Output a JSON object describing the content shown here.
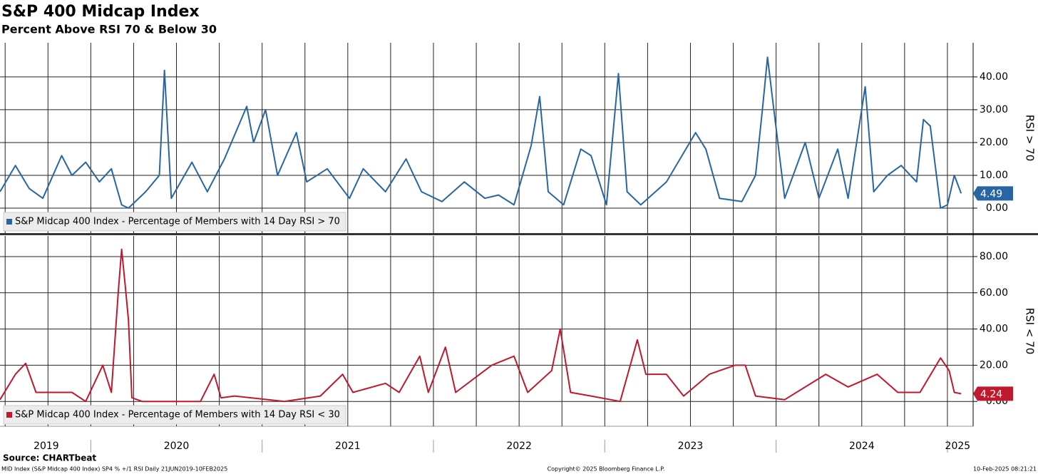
{
  "header": {
    "title": "S&P 400 Midcap Index",
    "subtitle": "Percent Above RSI 70 & Below 30"
  },
  "footer": {
    "source": "Source: CHARTbeat",
    "left": "MID Index (S&P Midcap 400 Index) SP4 % +/1 RSI  Daily 21JUN2019-10FEB2025",
    "center": "Copyright© 2025 Bloomberg Finance L.P.",
    "right": "10-Feb-2025 08:21:21"
  },
  "chart_data": [
    {
      "type": "line",
      "y_label": "RSI > 70",
      "grid": true,
      "xlim": [
        2019.47,
        2025.15
      ],
      "ylim": [
        -7.6,
        50.4
      ],
      "yticks": [
        {
          "value": 0,
          "label": "0.00"
        },
        {
          "value": 10,
          "label": "10.00"
        },
        {
          "value": 20,
          "label": "20.00"
        },
        {
          "value": 30,
          "label": "30.00"
        },
        {
          "value": 40,
          "label": "40.00"
        }
      ],
      "xgrid": [
        2019.5,
        2019.75,
        2020,
        2020.25,
        2020.5,
        2020.75,
        2021,
        2021.25,
        2021.5,
        2021.75,
        2022,
        2022.25,
        2022.5,
        2022.75,
        2023,
        2023.25,
        2023.5,
        2023.75,
        2024,
        2024.25,
        2024.5,
        2024.75,
        2025
      ],
      "x": [
        2019.47,
        2019.56,
        2019.64,
        2019.72,
        2019.83,
        2019.89,
        2019.97,
        2020.05,
        2020.12,
        2020.18,
        2020.22,
        2020.32,
        2020.4,
        2020.43,
        2020.47,
        2020.59,
        2020.68,
        2020.78,
        2020.91,
        2020.95,
        2021.02,
        2021.09,
        2021.2,
        2021.26,
        2021.38,
        2021.51,
        2021.59,
        2021.72,
        2021.84,
        2021.93,
        2022.05,
        2022.18,
        2022.3,
        2022.38,
        2022.47,
        2022.57,
        2022.62,
        2022.67,
        2022.76,
        2022.86,
        2022.92,
        2023.01,
        2023.08,
        2023.13,
        2023.21,
        2023.36,
        2023.53,
        2023.59,
        2023.67,
        2023.8,
        2023.88,
        2023.92,
        2023.95,
        2023.98,
        2024.05,
        2024.17,
        2024.25,
        2024.36,
        2024.42,
        2024.52,
        2024.57,
        2024.65,
        2024.73,
        2024.82,
        2024.86,
        2024.9,
        2024.96,
        2025,
        2025.04,
        2025.08
      ],
      "series": [
        {
          "name": "S&P Midcap 400 Index - Percentage of Members with 14 Day RSI > 70",
          "color": "#2866a3",
          "values": [
            5,
            13,
            6,
            3,
            16,
            10,
            14,
            8,
            12,
            1,
            0,
            5,
            10,
            42,
            3,
            14,
            5,
            15,
            31,
            20,
            30,
            10,
            23,
            8,
            12,
            3,
            12,
            5,
            15,
            5,
            2,
            8,
            3,
            4,
            1,
            19,
            34,
            5,
            1,
            18,
            16,
            1,
            41,
            5,
            1,
            8,
            23,
            18,
            3,
            2,
            10,
            30,
            46,
            33,
            3,
            20,
            3,
            18,
            3,
            37,
            5,
            10,
            13,
            8,
            27,
            25,
            0,
            1,
            10,
            4.49
          ],
          "end_label": "4.49"
        }
      ]
    },
    {
      "type": "line",
      "y_label": "RSI < 70",
      "grid": true,
      "xlim": [
        2019.47,
        2025.15
      ],
      "ylim": [
        -13.7,
        91.4
      ],
      "yticks": [
        {
          "value": 0,
          "label": "0.00"
        },
        {
          "value": 20,
          "label": "20.00"
        },
        {
          "value": 40,
          "label": "40.00"
        },
        {
          "value": 60,
          "label": "60.00"
        },
        {
          "value": 80,
          "label": "80.00"
        }
      ],
      "xgrid": [
        2019.5,
        2019.75,
        2020,
        2020.25,
        2020.5,
        2020.75,
        2021,
        2021.25,
        2021.5,
        2021.75,
        2022,
        2022.25,
        2022.5,
        2022.75,
        2023,
        2023.25,
        2023.5,
        2023.75,
        2024,
        2024.25,
        2024.5,
        2024.75,
        2025
      ],
      "xticks": [
        {
          "value": 2019.74,
          "label": "2019"
        },
        {
          "value": 2020.5,
          "label": "2020"
        },
        {
          "value": 2021.5,
          "label": "2021"
        },
        {
          "value": 2022.5,
          "label": "2022"
        },
        {
          "value": 2023.5,
          "label": "2023"
        },
        {
          "value": 2024.5,
          "label": "2024"
        },
        {
          "value": 2025.06,
          "label": "2025"
        }
      ],
      "x": [
        2019.47,
        2019.56,
        2019.62,
        2019.68,
        2019.76,
        2019.89,
        2019.97,
        2020.07,
        2020.12,
        2020.16,
        2020.18,
        2020.2,
        2020.22,
        2020.24,
        2020.3,
        2020.64,
        2020.72,
        2020.76,
        2020.84,
        2021.13,
        2021.34,
        2021.47,
        2021.53,
        2021.72,
        2021.8,
        2021.92,
        2021.97,
        2022.07,
        2022.13,
        2022.34,
        2022.47,
        2022.55,
        2022.69,
        2022.74,
        2022.8,
        2022.92,
        2023.09,
        2023.19,
        2023.24,
        2023.36,
        2023.46,
        2023.61,
        2023.76,
        2023.82,
        2023.88,
        2024.05,
        2024.29,
        2024.42,
        2024.59,
        2024.71,
        2024.84,
        2024.96,
        2025.01,
        2025.04,
        2025.08
      ],
      "series": [
        {
          "name": "S&P Midcap 400 Index - Percentage of Members with 14 Day RSI < 30",
          "color": "#c0182d",
          "values": [
            1,
            15,
            21,
            5,
            5,
            5,
            0,
            20,
            5,
            60,
            84,
            65,
            45,
            2,
            0,
            0,
            15,
            2,
            3,
            0,
            3,
            15,
            5,
            10,
            5,
            25,
            5,
            30,
            5,
            20,
            25,
            5,
            17,
            40,
            5,
            3,
            0,
            34,
            15,
            15,
            3,
            15,
            20,
            20,
            3,
            1,
            15,
            8,
            15,
            5,
            5,
            24,
            17,
            5,
            4.24
          ],
          "end_label": "4.24"
        }
      ]
    }
  ]
}
